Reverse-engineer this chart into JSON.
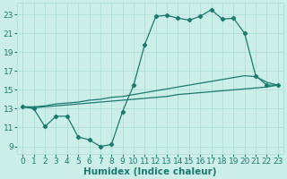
{
  "title": "",
  "xlabel": "Humidex (Indice chaleur)",
  "ylabel": "",
  "background_color": "#cceee8",
  "grid_color": "#aaddd5",
  "line_color": "#1a7a6e",
  "x_ticks": [
    0,
    1,
    2,
    3,
    4,
    5,
    6,
    7,
    8,
    9,
    10,
    11,
    12,
    13,
    14,
    15,
    16,
    17,
    18,
    19,
    20,
    21,
    22,
    23
  ],
  "y_ticks": [
    9,
    11,
    13,
    15,
    17,
    19,
    21,
    23
  ],
  "xlim": [
    -0.5,
    23.5
  ],
  "ylim": [
    8.2,
    24.2
  ],
  "line1_x": [
    0,
    1,
    2,
    3,
    4,
    5,
    6,
    7,
    8,
    9,
    10,
    11,
    12,
    13,
    14,
    15,
    16,
    17,
    18,
    19,
    20,
    21,
    22,
    23
  ],
  "line1_y": [
    13.2,
    13.0,
    11.1,
    12.2,
    12.2,
    10.0,
    9.7,
    9.0,
    9.2,
    12.7,
    15.5,
    19.8,
    22.8,
    22.9,
    22.6,
    22.4,
    22.8,
    23.5,
    22.5,
    22.6,
    21.0,
    16.5,
    15.5,
    15.5
  ],
  "line2_x": [
    0,
    1,
    2,
    3,
    4,
    5,
    6,
    7,
    8,
    9,
    10,
    11,
    12,
    13,
    14,
    15,
    16,
    17,
    18,
    19,
    20,
    21,
    22,
    23
  ],
  "line2_y": [
    13.2,
    13.1,
    13.2,
    13.3,
    13.4,
    13.5,
    13.6,
    13.7,
    13.8,
    13.9,
    14.0,
    14.1,
    14.2,
    14.3,
    14.5,
    14.6,
    14.7,
    14.8,
    14.9,
    15.0,
    15.1,
    15.2,
    15.3,
    15.5
  ],
  "line3_x": [
    0,
    1,
    2,
    3,
    4,
    5,
    6,
    7,
    8,
    9,
    10,
    11,
    12,
    13,
    14,
    15,
    16,
    17,
    18,
    19,
    20,
    21,
    22,
    23
  ],
  "line3_y": [
    13.2,
    13.2,
    13.3,
    13.5,
    13.6,
    13.7,
    13.9,
    14.0,
    14.2,
    14.3,
    14.5,
    14.7,
    14.9,
    15.1,
    15.3,
    15.5,
    15.7,
    15.9,
    16.1,
    16.3,
    16.5,
    16.4,
    15.8,
    15.5
  ],
  "font_color": "#1a7a6e",
  "tick_fontsize": 6.5,
  "xlabel_fontsize": 7.5
}
